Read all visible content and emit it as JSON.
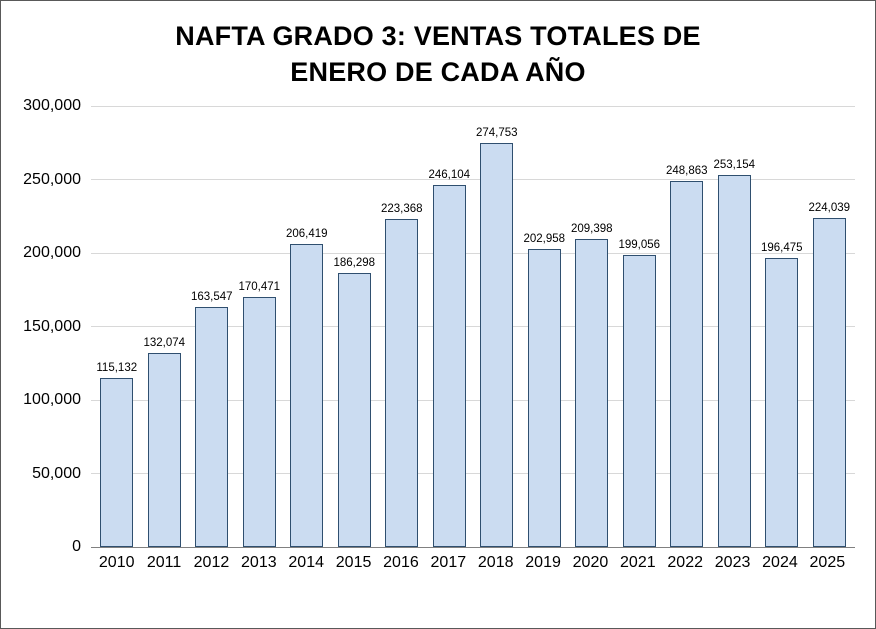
{
  "title": {
    "line1": "NAFTA GRADO 3: VENTAS TOTALES DE",
    "line2": "ENERO DE CADA AÑO"
  },
  "chart_data": {
    "type": "bar",
    "title": "NAFTA GRADO 3: VENTAS TOTALES DE ENERO DE CADA AÑO",
    "categories": [
      "2010",
      "2011",
      "2012",
      "2013",
      "2014",
      "2015",
      "2016",
      "2017",
      "2018",
      "2019",
      "2020",
      "2021",
      "2022",
      "2023",
      "2024",
      "2025"
    ],
    "values": [
      115132,
      132074,
      163547,
      170471,
      206419,
      186298,
      223368,
      246104,
      274753,
      202958,
      209398,
      199056,
      248863,
      253154,
      196475,
      224039
    ],
    "value_labels": [
      "115,132",
      "132,074",
      "163,547",
      "170,471",
      "206,419",
      "186,298",
      "223,368",
      "246,104",
      "274,753",
      "202,958",
      "209,398",
      "199,056",
      "248,863",
      "253,154",
      "196,475",
      "224,039"
    ],
    "xlabel": "",
    "ylabel": "",
    "ylim": [
      0,
      300000
    ],
    "yticks": [
      0,
      50000,
      100000,
      150000,
      200000,
      250000,
      300000
    ],
    "ytick_labels": [
      "0",
      "50,000",
      "100,000",
      "150,000",
      "200,000",
      "250,000",
      "300,000"
    ],
    "grid": true,
    "legend": false,
    "colors": {
      "bar_fill": "#cbdcf1",
      "bar_border": "#2f4f6f",
      "gridline": "#d8d8d8",
      "axis_line": "#808080",
      "text": "#000000",
      "frame_border": "#595959",
      "background": "#ffffff"
    }
  }
}
